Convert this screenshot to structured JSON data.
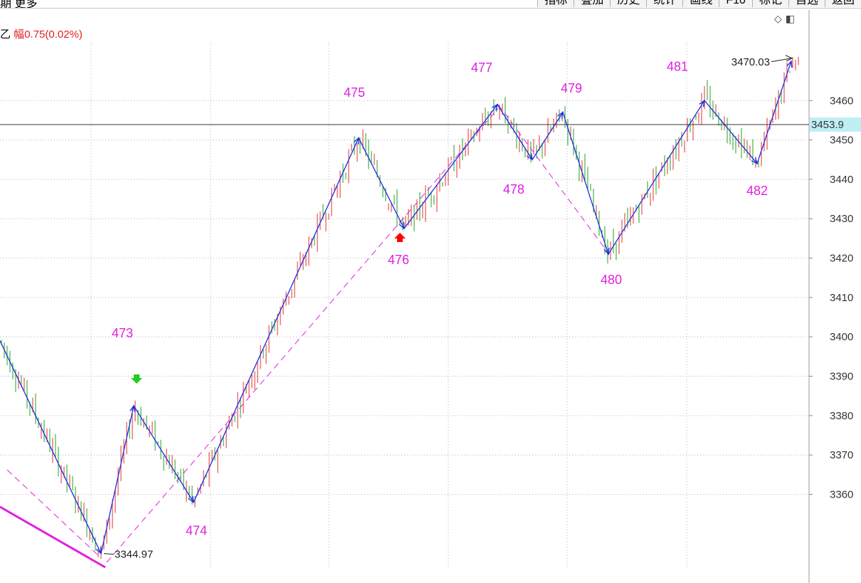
{
  "header": {
    "left_text": "期 更多",
    "toolbar": [
      "指标",
      "叠加",
      "历史",
      "统计",
      "画线",
      "F10",
      "标记",
      "自选",
      "返回"
    ]
  },
  "info": {
    "prefix": "乙 ",
    "amplitude_label": "幅",
    "amplitude_value": "0.75(0.02%)"
  },
  "corner_icons": [
    "diamond-icon",
    "panel-toggle-icon"
  ],
  "colors": {
    "up": "#e03030",
    "down": "#20a020",
    "wave": "#1a2ee0",
    "label": "#e020e0",
    "current_price_bg": "#bfeff5",
    "up_arrow": "#ff0000",
    "down_arrow": "#22cc22"
  },
  "chart_data": {
    "type": "candlestick",
    "y_ticks": [
      "3360",
      "3370",
      "3380",
      "3390",
      "3400",
      "3410",
      "3420",
      "3430",
      "3440",
      "3450",
      "3460"
    ],
    "ylim": [
      3337.5,
      3483
    ],
    "current_price": "3453.9",
    "wave_points": [
      {
        "label": "",
        "price": 3399
      },
      {
        "label": "",
        "price": 3345
      },
      {
        "label": "473",
        "price": 3382.5
      },
      {
        "label": "474",
        "price": 3358
      },
      {
        "label": "475",
        "price": 3450.5
      },
      {
        "label": "476",
        "price": 3427.5
      },
      {
        "label": "477",
        "price": 3459
      },
      {
        "label": "478",
        "price": 3445
      },
      {
        "label": "479",
        "price": 3457
      },
      {
        "label": "480",
        "price": 3421
      },
      {
        "label": "481",
        "price": 3460
      },
      {
        "label": "482",
        "price": 3444
      },
      {
        "label": "",
        "price": 3470
      }
    ],
    "extremes": [
      {
        "label": "3344.97",
        "price": 3344.97
      },
      {
        "label": "3470.03",
        "price": 3470.03
      }
    ],
    "signals": [
      {
        "type": "down",
        "near": "473"
      },
      {
        "type": "up",
        "near": "476"
      }
    ]
  }
}
